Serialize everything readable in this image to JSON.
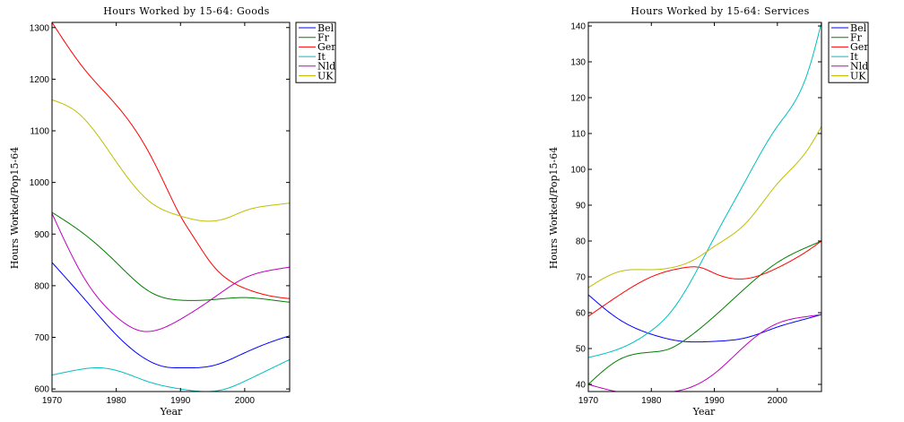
{
  "chart_data": [
    {
      "type": "line",
      "title": "Hours Worked by 15-64: Goods",
      "xlabel": "Year",
      "ylabel": "Hours Worked/Pop15-64",
      "xlim": [
        1970,
        2007
      ],
      "ylim": [
        595,
        1310
      ],
      "xticks": [
        1970,
        1980,
        1990,
        2000
      ],
      "yticks": [
        600,
        700,
        800,
        900,
        1000,
        1100,
        1200,
        1300
      ],
      "grid": false,
      "legend": "outside-top-right",
      "series": [
        {
          "name": "Bel",
          "color": "#0000ff",
          "x": [
            1970,
            1975,
            1980,
            1985,
            1988,
            1990,
            1995,
            2000,
            2005,
            2007
          ],
          "y": [
            845,
            775,
            705,
            655,
            642,
            641,
            645,
            670,
            695,
            703
          ]
        },
        {
          "name": "Fr",
          "color": "#007f00",
          "x": [
            1970,
            1975,
            1980,
            1985,
            1988,
            1990,
            1995,
            2000,
            2005,
            2007
          ],
          "y": [
            942,
            900,
            845,
            790,
            775,
            772,
            773,
            777,
            771,
            768
          ]
        },
        {
          "name": "Ger",
          "color": "#ff0000",
          "x": [
            1970,
            1975,
            1980,
            1985,
            1988,
            1990,
            1992,
            1995,
            2000,
            2005,
            2007
          ],
          "y": [
            1310,
            1220,
            1150,
            1060,
            985,
            935,
            895,
            840,
            795,
            778,
            775
          ]
        },
        {
          "name": "It",
          "color": "#00bfbf",
          "x": [
            1970,
            1974,
            1977,
            1980,
            1985,
            1990,
            1994,
            1997,
            2000,
            2005,
            2007
          ],
          "y": [
            627,
            637,
            641,
            636,
            614,
            600,
            595,
            600,
            615,
            645,
            657
          ]
        },
        {
          "name": "Nld",
          "color": "#bf00bf",
          "x": [
            1970,
            1975,
            1980,
            1984,
            1986,
            1990,
            1995,
            2000,
            2005,
            2007
          ],
          "y": [
            940,
            815,
            740,
            712,
            713,
            735,
            775,
            815,
            832,
            836
          ]
        },
        {
          "name": "UK",
          "color": "#bfbf00",
          "x": [
            1970,
            1974,
            1980,
            1985,
            1990,
            1994,
            1997,
            2000,
            2005,
            2007
          ],
          "y": [
            1160,
            1135,
            1040,
            965,
            935,
            925,
            930,
            945,
            957,
            960
          ]
        }
      ]
    },
    {
      "type": "line",
      "title": "Hours Worked by 15-64: Services",
      "xlabel": "Year",
      "ylabel": "Hours Worked/Pop15-64",
      "xlim": [
        1970,
        2007
      ],
      "ylim": [
        38,
        141
      ],
      "xticks": [
        1970,
        1980,
        1990,
        2000
      ],
      "yticks": [
        40,
        50,
        60,
        70,
        80,
        90,
        100,
        110,
        120,
        130,
        140
      ],
      "grid": false,
      "legend": "outside-top-right",
      "series": [
        {
          "name": "Bel",
          "color": "#0000ff",
          "x": [
            1970,
            1975,
            1980,
            1985,
            1990,
            1995,
            2000,
            2005,
            2007
          ],
          "y": [
            65,
            58,
            54,
            52,
            52,
            53,
            56,
            58.5,
            59.5
          ]
        },
        {
          "name": "Fr",
          "color": "#007f00",
          "x": [
            1970,
            1975,
            1980,
            1983,
            1985,
            1990,
            1995,
            2000,
            2005,
            2007
          ],
          "y": [
            40,
            47,
            49,
            50,
            52,
            59,
            67,
            74,
            78.5,
            80
          ]
        },
        {
          "name": "Ger",
          "color": "#ff0000",
          "x": [
            1970,
            1975,
            1980,
            1985,
            1988,
            1990,
            1995,
            2000,
            2005,
            2007
          ],
          "y": [
            59,
            65,
            70,
            72.5,
            72.5,
            71,
            69.5,
            72.5,
            77.5,
            80
          ]
        },
        {
          "name": "It",
          "color": "#00bfbf",
          "x": [
            1970,
            1975,
            1980,
            1983,
            1985,
            1990,
            1995,
            2000,
            2005,
            2007
          ],
          "y": [
            47.5,
            50,
            55,
            60,
            65,
            81,
            97,
            112,
            128,
            141
          ]
        },
        {
          "name": "Nld",
          "color": "#bf00bf",
          "x": [
            1970,
            1975,
            1978,
            1980,
            1985,
            1990,
            1995,
            2000,
            2005,
            2007
          ],
          "y": [
            40,
            37.8,
            37.3,
            37.5,
            38.5,
            43,
            51,
            57,
            59,
            59.5
          ]
        },
        {
          "name": "UK",
          "color": "#bfbf00",
          "x": [
            1970,
            1975,
            1980,
            1983,
            1987,
            1990,
            1995,
            2000,
            2005,
            2007
          ],
          "y": [
            67,
            71.5,
            72,
            72.5,
            75,
            78.5,
            85,
            96,
            106,
            112
          ]
        }
      ]
    }
  ]
}
